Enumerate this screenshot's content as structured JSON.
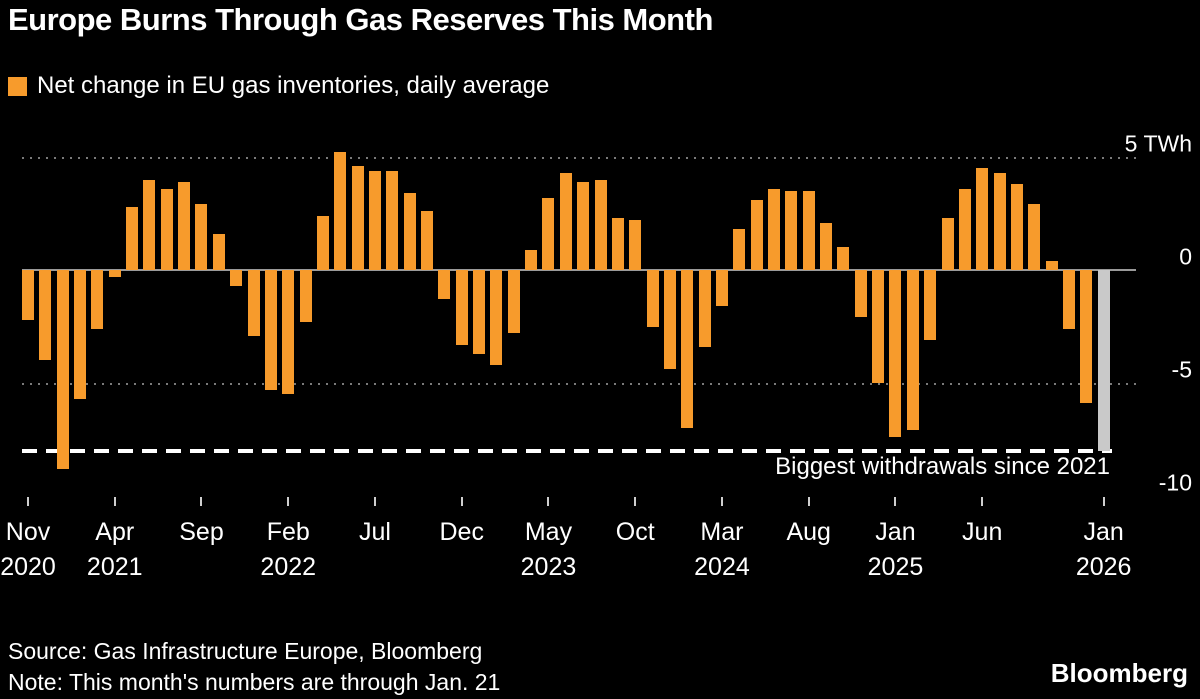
{
  "title": "Europe Burns Through Gas Reserves This Month",
  "legend": {
    "label": "Net change in EU gas inventories, daily average",
    "swatch_color": "#F79B2C"
  },
  "annotation": "Biggest withdrawals since 2021",
  "source": "Source: Gas Infrastructure Europe, Bloomberg",
  "note": "Note: This month's numbers are through Jan. 21",
  "brand": "Bloomberg",
  "colors": {
    "background": "#000000",
    "bar": "#F79B2C",
    "current_bar": "#C9C9C9",
    "grid_dotted": "#7A7A7A",
    "zero_line": "#9A9A9A",
    "record_line": "#FFFFFF",
    "text": "#FFFFFF"
  },
  "y_axis": {
    "unit": "TWh",
    "labels": [
      {
        "value": 5,
        "label": "5 TWh"
      },
      {
        "value": 0,
        "label": "0"
      },
      {
        "value": -5,
        "label": "-5"
      },
      {
        "value": -10,
        "label": "-10"
      }
    ],
    "gridlines_dotted": [
      5,
      -5
    ],
    "record_level": -8
  },
  "x_axis": {
    "ticks": [
      {
        "index": 0,
        "month": "Nov",
        "year": "2020"
      },
      {
        "index": 5,
        "month": "Apr",
        "year": "2021"
      },
      {
        "index": 10,
        "month": "Sep",
        "year": ""
      },
      {
        "index": 15,
        "month": "Feb",
        "year": "2022"
      },
      {
        "index": 20,
        "month": "Jul",
        "year": ""
      },
      {
        "index": 25,
        "month": "Dec",
        "year": ""
      },
      {
        "index": 30,
        "month": "May",
        "year": "2023"
      },
      {
        "index": 35,
        "month": "Oct",
        "year": ""
      },
      {
        "index": 40,
        "month": "Mar",
        "year": "2024"
      },
      {
        "index": 45,
        "month": "Aug",
        "year": ""
      },
      {
        "index": 50,
        "month": "Jan",
        "year": "2025"
      },
      {
        "index": 55,
        "month": "Jun",
        "year": ""
      },
      {
        "index": 62,
        "month": "Jan",
        "year": "2026"
      }
    ]
  },
  "chart_data": {
    "type": "bar",
    "title": "Europe Burns Through Gas Reserves This Month",
    "series_name": "Net change in EU gas inventories, daily average",
    "ylabel": "TWh",
    "ylim": [
      -10.5,
      5.5
    ],
    "grid": "dotted at 5 and -5, solid zero line, white dashed record line at -8",
    "legend_position": "top-left",
    "current_month_index": 62,
    "x": [
      "2020-11",
      "2020-12",
      "2021-01",
      "2021-02",
      "2021-03",
      "2021-04",
      "2021-05",
      "2021-06",
      "2021-07",
      "2021-08",
      "2021-09",
      "2021-10",
      "2021-11",
      "2021-12",
      "2022-01",
      "2022-02",
      "2022-03",
      "2022-04",
      "2022-05",
      "2022-06",
      "2022-07",
      "2022-08",
      "2022-09",
      "2022-10",
      "2022-11",
      "2022-12",
      "2023-01",
      "2023-02",
      "2023-03",
      "2023-04",
      "2023-05",
      "2023-06",
      "2023-07",
      "2023-08",
      "2023-09",
      "2023-10",
      "2023-11",
      "2023-12",
      "2024-01",
      "2024-02",
      "2024-03",
      "2024-04",
      "2024-05",
      "2024-06",
      "2024-07",
      "2024-08",
      "2024-09",
      "2024-10",
      "2024-11",
      "2024-12",
      "2025-01",
      "2025-02",
      "2025-03",
      "2025-04",
      "2025-05",
      "2025-06",
      "2025-07",
      "2025-08",
      "2025-09",
      "2025-10",
      "2025-11",
      "2025-12",
      "2026-01"
    ],
    "values": [
      -2.2,
      -4.0,
      -8.8,
      -5.7,
      -2.6,
      -0.3,
      2.8,
      4.0,
      3.6,
      3.9,
      2.9,
      1.6,
      -0.7,
      -2.9,
      -5.3,
      -5.5,
      -2.3,
      2.4,
      5.2,
      4.6,
      4.4,
      4.4,
      3.4,
      2.6,
      -1.3,
      -3.3,
      -3.7,
      -4.2,
      -2.8,
      0.9,
      3.2,
      4.3,
      3.9,
      4.0,
      2.3,
      2.2,
      -2.5,
      -4.4,
      -7.0,
      -3.4,
      -1.6,
      1.8,
      3.1,
      3.6,
      3.5,
      3.5,
      2.1,
      1.0,
      -2.1,
      -5.0,
      -7.4,
      -7.1,
      -3.1,
      2.3,
      3.6,
      4.5,
      4.3,
      3.8,
      2.9,
      0.4,
      -2.6,
      -5.9,
      -8.0
    ]
  }
}
